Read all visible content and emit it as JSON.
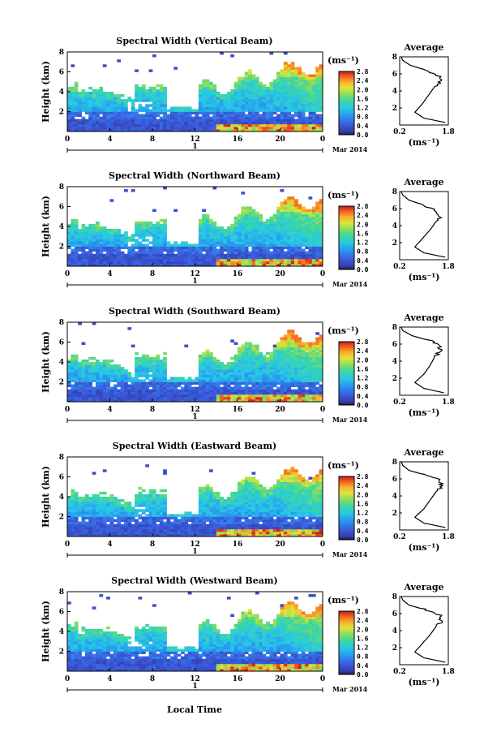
{
  "figure": {
    "xlabel": "Local Time",
    "day_label": "1",
    "date_label": "Mar 2014",
    "unit_label": "(ms⁻¹)",
    "avg_title": "Average"
  },
  "chart_data": [
    {
      "type": "heatmap",
      "title": "Spectral Width (Vertical Beam)",
      "ylabel": "Height (km)",
      "x_ticks": [
        "0",
        "4",
        "8",
        "12",
        "16",
        "20",
        "0"
      ],
      "xlim": [
        0,
        24
      ],
      "ylim": [
        0,
        8
      ],
      "y_ticks": [
        "2",
        "4",
        "6",
        "8"
      ],
      "colorbar_ticks": [
        "0.0",
        "0.4",
        "0.8",
        "1.2",
        "1.6",
        "2.0",
        "2.4",
        "2.8"
      ],
      "colorbar_range": [
        0.0,
        2.8
      ],
      "profile": {
        "title": "Average",
        "xlim": [
          0.2,
          1.8
        ],
        "x_ticks": [
          "0.2",
          "1.8"
        ],
        "y_ticks": [
          "2",
          "4",
          "6",
          "8"
        ],
        "heights": [
          0.3,
          0.8,
          1.5,
          2.5,
          3.5,
          4.5,
          5.2,
          5.8,
          6.4,
          7.0,
          7.6,
          8.0
        ],
        "values": [
          1.7,
          1.0,
          0.7,
          0.95,
          1.15,
          1.35,
          1.55,
          1.45,
          1.1,
          0.55,
          0.3,
          0.25
        ]
      }
    },
    {
      "type": "heatmap",
      "title": "Spectral Width (Northward Beam)",
      "ylabel": "Height (km)",
      "x_ticks": [
        "0",
        "4",
        "8",
        "12",
        "16",
        "20",
        "0"
      ],
      "xlim": [
        0,
        24
      ],
      "ylim": [
        0,
        8
      ],
      "y_ticks": [
        "2",
        "4",
        "6",
        "8"
      ],
      "colorbar_ticks": [
        "0.0",
        "0.4",
        "0.8",
        "1.2",
        "1.6",
        "2.0",
        "2.4",
        "2.8"
      ],
      "colorbar_range": [
        0.0,
        2.8
      ],
      "profile": {
        "title": "Average",
        "xlim": [
          0.2,
          1.8
        ],
        "x_ticks": [
          "0.2",
          "1.8"
        ],
        "y_ticks": [
          "2",
          "4",
          "6",
          "8"
        ],
        "heights": [
          0.3,
          0.8,
          1.5,
          2.5,
          3.5,
          4.5,
          5.2,
          5.8,
          6.4,
          7.0,
          7.6,
          8.0
        ],
        "values": [
          1.7,
          1.0,
          0.7,
          0.95,
          1.2,
          1.4,
          1.55,
          1.4,
          1.0,
          0.5,
          0.3,
          0.25
        ]
      }
    },
    {
      "type": "heatmap",
      "title": "Spectral Width (Southward Beam)",
      "ylabel": "Height (km)",
      "x_ticks": [
        "0",
        "4",
        "8",
        "12",
        "16",
        "20",
        "0"
      ],
      "xlim": [
        0,
        24
      ],
      "ylim": [
        0,
        8
      ],
      "y_ticks": [
        "2",
        "4",
        "6",
        "8"
      ],
      "colorbar_ticks": [
        "0.0",
        "0.4",
        "0.8",
        "1.2",
        "1.6",
        "2.0",
        "2.4",
        "2.8"
      ],
      "colorbar_range": [
        0.0,
        2.8
      ],
      "profile": {
        "title": "Average",
        "xlim": [
          0.2,
          1.8
        ],
        "x_ticks": [
          "0.2",
          "1.8"
        ],
        "y_ticks": [
          "2",
          "4",
          "6",
          "8"
        ],
        "heights": [
          0.3,
          0.8,
          1.5,
          2.5,
          3.5,
          4.5,
          5.2,
          5.8,
          6.4,
          7.0,
          7.6,
          8.0
        ],
        "values": [
          1.65,
          1.0,
          0.7,
          1.0,
          1.2,
          1.35,
          1.5,
          1.55,
          1.2,
          0.6,
          0.3,
          0.25
        ]
      }
    },
    {
      "type": "heatmap",
      "title": "Spectral Width (Eastward Beam)",
      "ylabel": "Height (km)",
      "x_ticks": [
        "0",
        "4",
        "8",
        "12",
        "16",
        "20",
        "0"
      ],
      "xlim": [
        0,
        24
      ],
      "ylim": [
        0,
        8
      ],
      "y_ticks": [
        "2",
        "4",
        "6",
        "8"
      ],
      "colorbar_ticks": [
        "0.0",
        "0.4",
        "0.8",
        "1.2",
        "1.6",
        "2.0",
        "2.4",
        "2.8"
      ],
      "colorbar_range": [
        0.0,
        2.8
      ],
      "profile": {
        "title": "Average",
        "xlim": [
          0.2,
          1.8
        ],
        "x_ticks": [
          "0.2",
          "1.8"
        ],
        "y_ticks": [
          "2",
          "4",
          "6",
          "8"
        ],
        "heights": [
          0.3,
          0.8,
          1.5,
          2.5,
          3.5,
          4.5,
          5.2,
          5.8,
          6.4,
          7.0,
          7.6,
          8.0
        ],
        "values": [
          1.7,
          1.0,
          0.7,
          1.0,
          1.2,
          1.4,
          1.6,
          1.55,
          1.1,
          0.5,
          0.3,
          0.25
        ]
      }
    },
    {
      "type": "heatmap",
      "title": "Spectral Width (Westward Beam)",
      "ylabel": "Height (km)",
      "x_ticks": [
        "0",
        "4",
        "8",
        "12",
        "16",
        "20",
        "0"
      ],
      "xlim": [
        0,
        24
      ],
      "ylim": [
        0,
        8
      ],
      "y_ticks": [
        "2",
        "4",
        "6",
        "8"
      ],
      "colorbar_ticks": [
        "0.0",
        "0.4",
        "0.8",
        "1.2",
        "1.6",
        "2.0",
        "2.4",
        "2.8"
      ],
      "colorbar_range": [
        0.0,
        2.8
      ],
      "profile": {
        "title": "Average",
        "xlim": [
          0.2,
          1.8
        ],
        "x_ticks": [
          "0.2",
          "1.8"
        ],
        "y_ticks": [
          "2",
          "4",
          "6",
          "8"
        ],
        "heights": [
          0.3,
          0.8,
          1.5,
          2.5,
          3.5,
          4.5,
          5.2,
          5.8,
          6.4,
          7.0,
          7.6,
          8.0
        ],
        "values": [
          1.7,
          1.0,
          0.7,
          0.95,
          1.2,
          1.4,
          1.6,
          1.5,
          1.1,
          0.5,
          0.3,
          0.25
        ]
      }
    }
  ]
}
